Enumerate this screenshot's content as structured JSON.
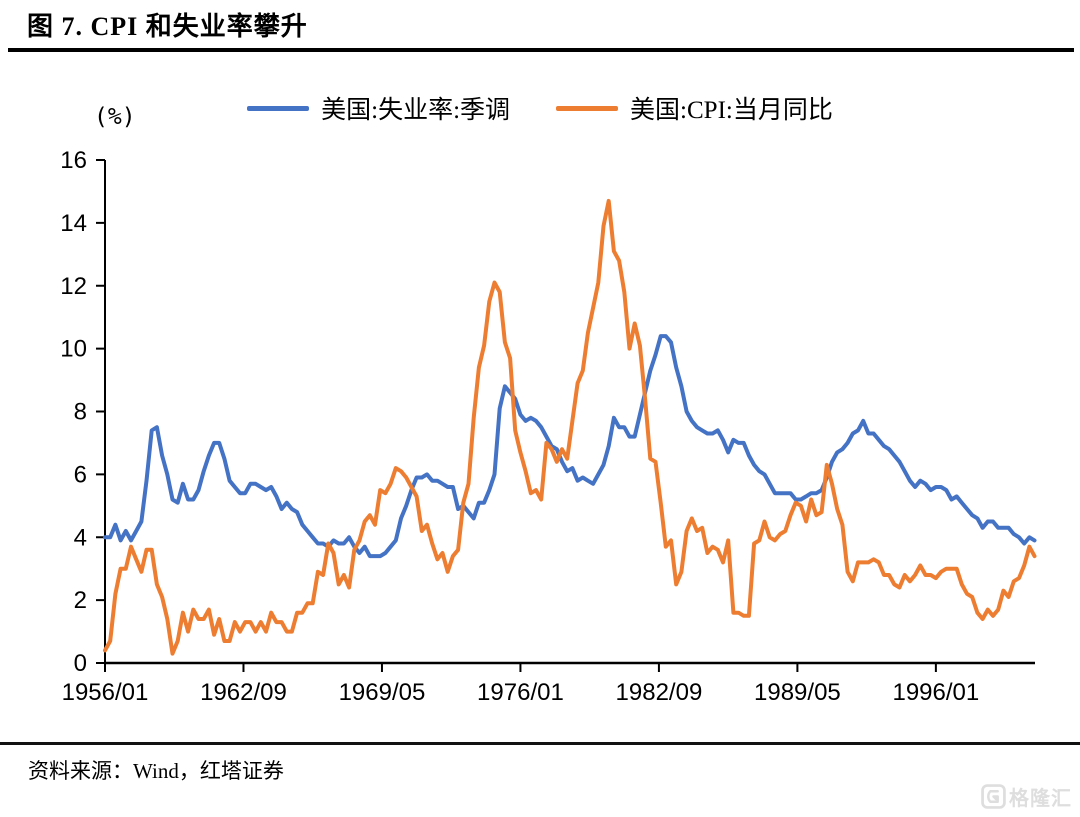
{
  "page": {
    "title": "图 7. CPI 和失业率攀升"
  },
  "footer": {
    "source": "资料来源：Wind，红塔证券"
  },
  "watermark": {
    "label": "格隆汇",
    "icon": "gelonghui-logo"
  },
  "chart_data": {
    "type": "line",
    "title": "图 7. CPI 和失业率攀升",
    "ylabel": "(%)",
    "xlabel": "",
    "grid": false,
    "legend_position": "top",
    "ylim": [
      0,
      16
    ],
    "y_tick_step": 2,
    "y_tick_labels": [
      "0",
      "2",
      "4",
      "6",
      "8",
      "10",
      "12",
      "14",
      "16"
    ],
    "x_start": "1956/01",
    "x_step_months": 3,
    "x_tick_labels": [
      "1956/01",
      "1962/09",
      "1969/05",
      "1976/01",
      "1982/09",
      "1989/05",
      "1996/01"
    ],
    "x_tick_month_index": [
      0,
      80,
      160,
      240,
      320,
      400,
      480
    ],
    "axis_color": "#000000",
    "series": [
      {
        "name": "美国:失业率:季调",
        "color": "#4472C4",
        "values": [
          4.0,
          4.0,
          4.4,
          3.9,
          4.2,
          3.9,
          4.2,
          4.5,
          5.8,
          7.4,
          7.5,
          6.6,
          6.0,
          5.2,
          5.1,
          5.7,
          5.2,
          5.2,
          5.5,
          6.1,
          6.6,
          7.0,
          7.0,
          6.5,
          5.8,
          5.6,
          5.4,
          5.4,
          5.7,
          5.7,
          5.6,
          5.5,
          5.6,
          5.3,
          4.9,
          5.1,
          4.9,
          4.8,
          4.4,
          4.2,
          4.0,
          3.8,
          3.8,
          3.7,
          3.9,
          3.8,
          3.8,
          4.0,
          3.7,
          3.5,
          3.7,
          3.4,
          3.4,
          3.4,
          3.5,
          3.7,
          3.9,
          4.6,
          5.0,
          5.5,
          5.9,
          5.9,
          6.0,
          5.8,
          5.8,
          5.7,
          5.6,
          5.6,
          4.9,
          5.0,
          4.8,
          4.6,
          5.1,
          5.1,
          5.5,
          6.0,
          8.1,
          8.8,
          8.6,
          8.4,
          7.9,
          7.7,
          7.8,
          7.7,
          7.5,
          7.2,
          6.9,
          6.8,
          6.4,
          6.1,
          6.2,
          5.8,
          5.9,
          5.8,
          5.7,
          6.0,
          6.3,
          6.9,
          7.8,
          7.5,
          7.5,
          7.2,
          7.2,
          7.9,
          8.6,
          9.3,
          9.8,
          10.4,
          10.4,
          10.2,
          9.4,
          8.8,
          8.0,
          7.7,
          7.5,
          7.4,
          7.3,
          7.3,
          7.4,
          7.1,
          6.7,
          7.1,
          7.0,
          7.0,
          6.6,
          6.3,
          6.1,
          6.0,
          5.7,
          5.4,
          5.4,
          5.4,
          5.4,
          5.2,
          5.2,
          5.3,
          5.4,
          5.4,
          5.5,
          5.9,
          6.4,
          6.7,
          6.8,
          7.0,
          7.3,
          7.4,
          7.7,
          7.3,
          7.3,
          7.1,
          6.9,
          6.8,
          6.6,
          6.4,
          6.1,
          5.8,
          5.6,
          5.8,
          5.7,
          5.5,
          5.6,
          5.6,
          5.5,
          5.2,
          5.3,
          5.1,
          4.9,
          4.7,
          4.6,
          4.3,
          4.5,
          4.5,
          4.3,
          4.3,
          4.3,
          4.1,
          4.0,
          3.8,
          4.0,
          3.9
        ]
      },
      {
        "name": "美国:CPI:当月同比",
        "color": "#ED7D31",
        "values": [
          0.4,
          0.7,
          2.2,
          3.0,
          3.0,
          3.7,
          3.3,
          2.9,
          3.6,
          3.6,
          2.5,
          2.1,
          1.4,
          0.3,
          0.7,
          1.6,
          1.0,
          1.7,
          1.4,
          1.4,
          1.7,
          0.9,
          1.4,
          0.7,
          0.7,
          1.3,
          1.0,
          1.3,
          1.3,
          1.0,
          1.3,
          1.0,
          1.6,
          1.3,
          1.3,
          1.0,
          1.0,
          1.6,
          1.6,
          1.9,
          1.9,
          2.9,
          2.8,
          3.8,
          3.5,
          2.5,
          2.8,
          2.4,
          3.6,
          3.9,
          4.5,
          4.7,
          4.4,
          5.5,
          5.4,
          5.7,
          6.2,
          6.1,
          5.9,
          5.6,
          5.3,
          4.2,
          4.4,
          3.8,
          3.3,
          3.5,
          2.9,
          3.4,
          3.6,
          5.1,
          5.7,
          7.8,
          9.4,
          10.1,
          11.5,
          12.1,
          11.8,
          10.2,
          9.7,
          7.4,
          6.7,
          6.1,
          5.4,
          5.5,
          5.2,
          7.0,
          6.8,
          6.4,
          6.8,
          6.5,
          7.7,
          8.9,
          9.3,
          10.5,
          11.3,
          12.1,
          13.9,
          14.7,
          13.1,
          12.8,
          11.8,
          10.0,
          10.8,
          10.1,
          8.4,
          6.5,
          6.4,
          5.1,
          3.7,
          3.9,
          2.5,
          2.9,
          4.2,
          4.6,
          4.2,
          4.3,
          3.5,
          3.7,
          3.6,
          3.2,
          3.9,
          1.6,
          1.6,
          1.5,
          1.5,
          3.8,
          3.9,
          4.5,
          4.0,
          3.9,
          4.1,
          4.2,
          4.7,
          5.1,
          5.0,
          4.5,
          5.2,
          4.7,
          4.8,
          6.3,
          5.7,
          4.9,
          4.4,
          2.9,
          2.6,
          3.2,
          3.2,
          3.2,
          3.3,
          3.2,
          2.8,
          2.8,
          2.5,
          2.4,
          2.8,
          2.6,
          2.8,
          3.1,
          2.8,
          2.8,
          2.7,
          2.9,
          3.0,
          3.0,
          3.0,
          2.5,
          2.2,
          2.1,
          1.6,
          1.4,
          1.7,
          1.5,
          1.7,
          2.3,
          2.1,
          2.6,
          2.7,
          3.1,
          3.7,
          3.4
        ]
      }
    ]
  }
}
